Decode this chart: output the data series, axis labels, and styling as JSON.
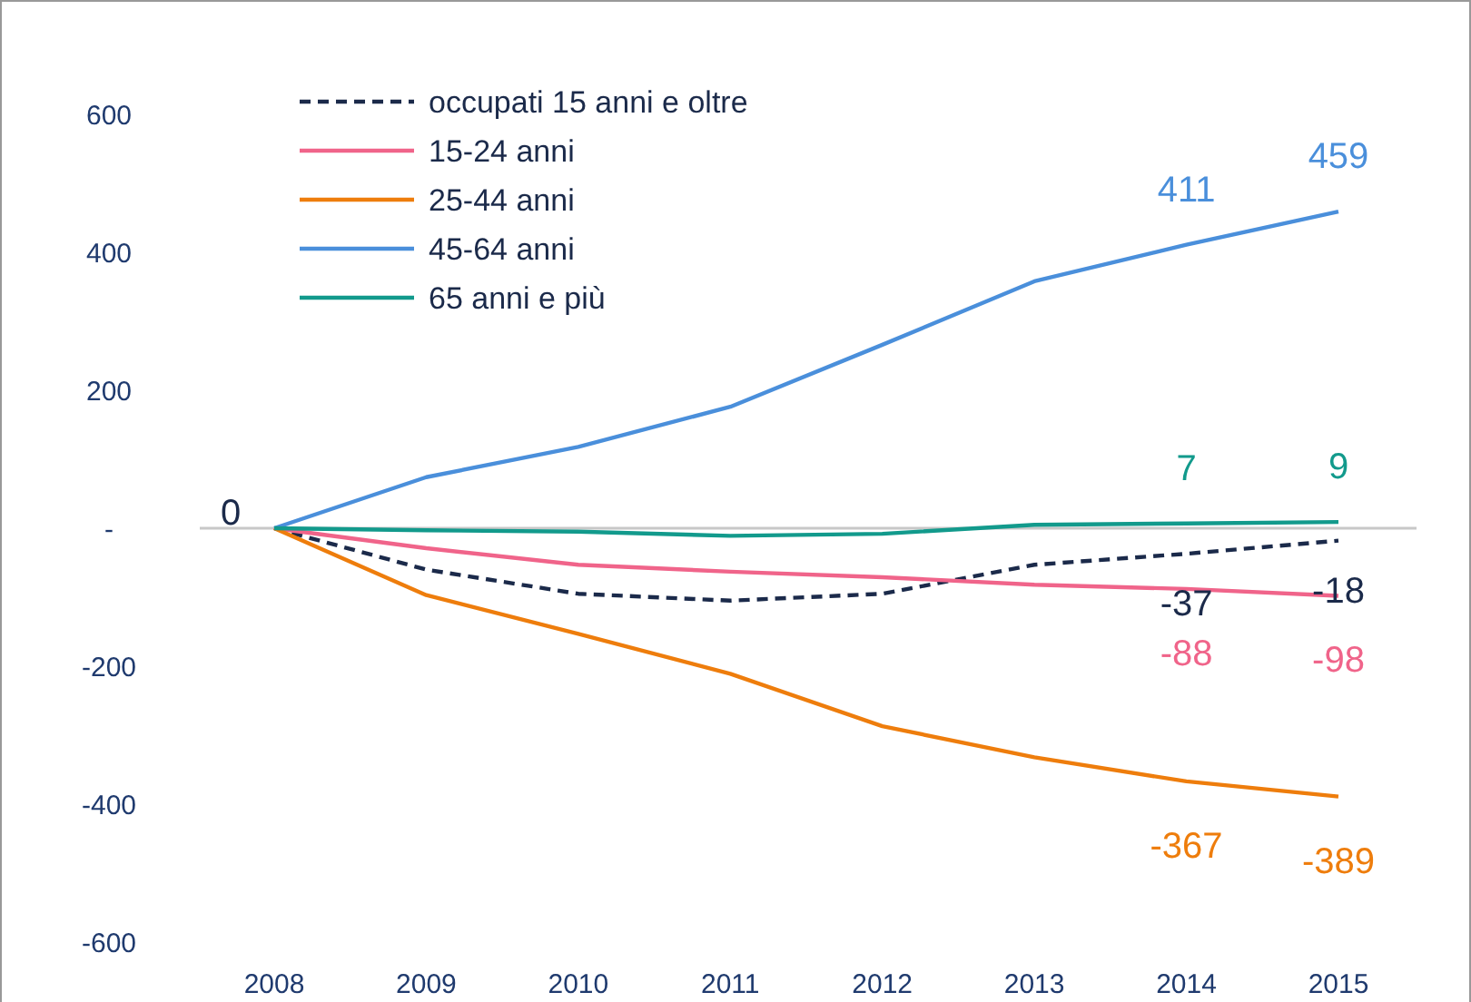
{
  "chart_data": {
    "type": "line",
    "categories": [
      "2008",
      "2009",
      "2010",
      "2011",
      "2012",
      "2013",
      "2014",
      "2015"
    ],
    "ylim": [
      -600,
      600
    ],
    "yticks": [
      -600,
      -400,
      -200,
      {
        "value": 0,
        "label": "-"
      },
      200,
      400,
      600
    ],
    "legend": "top left",
    "ref_lines": [
      {
        "axis": "y",
        "value": 0,
        "color": "#c8c8c8"
      }
    ],
    "series": [
      {
        "name": "occupati 15 anni e oltre",
        "color": "#1b2a4a",
        "line_style": "dashed",
        "values": [
          0,
          -60,
          -95,
          -105,
          -95,
          -53,
          -37,
          -18
        ],
        "value_labels": [
          "0",
          null,
          null,
          null,
          null,
          null,
          "-37",
          "-18"
        ]
      },
      {
        "name": "15-24 anni",
        "color": "#f0648a",
        "values": [
          0,
          -29,
          -53,
          -63,
          -71,
          -82,
          -88,
          -98
        ],
        "value_labels": [
          null,
          null,
          null,
          null,
          null,
          null,
          "-88",
          "-98"
        ]
      },
      {
        "name": "25-44 anni",
        "color": "#ee7d0c",
        "values": [
          0,
          -97,
          -153,
          -211,
          -287,
          -332,
          -367,
          -389
        ],
        "value_labels": [
          null,
          null,
          null,
          null,
          null,
          null,
          "-367",
          "-389"
        ]
      },
      {
        "name": "45-64 anni",
        "color": "#4a8fdb",
        "values": [
          0,
          74,
          118,
          176,
          266,
          358,
          411,
          459
        ],
        "value_labels": [
          null,
          null,
          null,
          null,
          null,
          null,
          "411",
          "459"
        ]
      },
      {
        "name": "65 anni e più",
        "color": "#129a8c",
        "values": [
          0,
          -3,
          -5,
          -11,
          -8,
          5,
          7,
          9
        ],
        "value_labels": [
          null,
          null,
          null,
          null,
          null,
          null,
          "7",
          "9"
        ]
      }
    ]
  }
}
